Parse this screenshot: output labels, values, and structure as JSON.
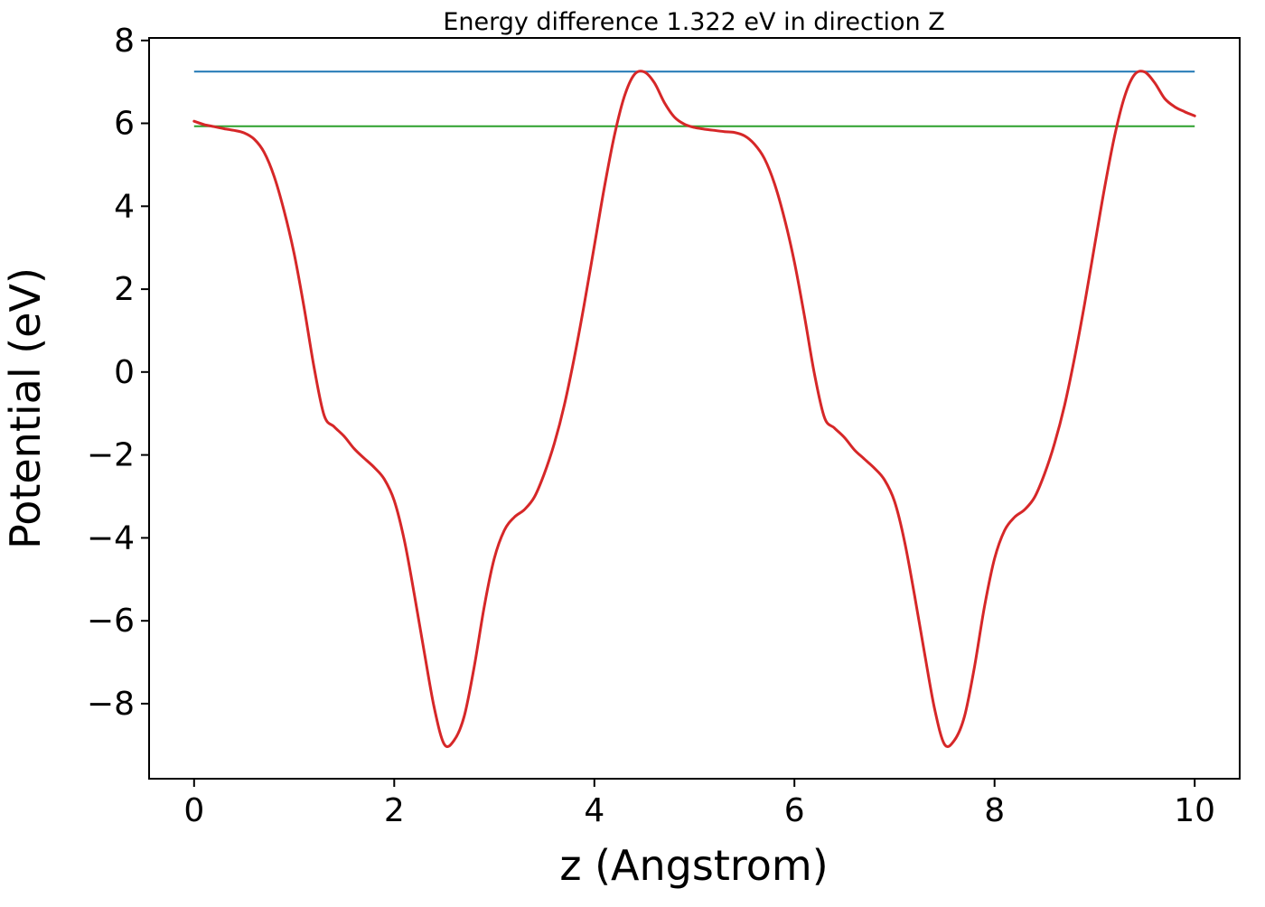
{
  "figure": {
    "background": "#ffffff"
  },
  "chart_data": {
    "type": "line",
    "title": "Energy difference 1.322 eV in direction Z",
    "xlabel": "z (Angstrom)",
    "ylabel": "Potential (eV)",
    "xlim": [
      -0.45,
      10.45
    ],
    "ylim": [
      -9.81,
      8.06
    ],
    "xticks": [
      0,
      2,
      4,
      6,
      8,
      10
    ],
    "yticks": [
      8,
      6,
      4,
      2,
      0,
      -2,
      -4,
      -6,
      -8
    ],
    "grid": false,
    "legend_visible": false,
    "energy_difference_eV": 1.322,
    "direction": "Z",
    "series": [
      {
        "name": "vacuum-level-line",
        "type": "hline",
        "color": "#1f77b4",
        "width": 2,
        "y": 7.25,
        "x_start": 0,
        "x_end": 10
      },
      {
        "name": "reference-level-line",
        "type": "hline",
        "color": "#2ca02c",
        "width": 2,
        "y": 5.93,
        "x_start": 0,
        "x_end": 10
      },
      {
        "name": "planar-averaged-potential",
        "type": "line",
        "color": "#d62728",
        "width": 3,
        "x": [
          0.0,
          0.1,
          0.2,
          0.3,
          0.4,
          0.5,
          0.6,
          0.7,
          0.8,
          0.9,
          1.0,
          1.1,
          1.2,
          1.3,
          1.4,
          1.5,
          1.6,
          1.7,
          1.8,
          1.9,
          2.0,
          2.1,
          2.2,
          2.3,
          2.4,
          2.5,
          2.6,
          2.7,
          2.8,
          2.9,
          3.0,
          3.1,
          3.2,
          3.3,
          3.4,
          3.5,
          3.6,
          3.7,
          3.8,
          3.9,
          4.0,
          4.1,
          4.2,
          4.3,
          4.4,
          4.5,
          4.6,
          4.7,
          4.8,
          4.9,
          5.0,
          5.1,
          5.2,
          5.3,
          5.4,
          5.5,
          5.6,
          5.7,
          5.8,
          5.9,
          6.0,
          6.1,
          6.2,
          6.3,
          6.4,
          6.5,
          6.6,
          6.7,
          6.8,
          6.9,
          7.0,
          7.1,
          7.2,
          7.3,
          7.4,
          7.5,
          7.6,
          7.7,
          7.8,
          7.9,
          8.0,
          8.1,
          8.2,
          8.3,
          8.4,
          8.5,
          8.6,
          8.7,
          8.8,
          8.9,
          9.0,
          9.1,
          9.2,
          9.3,
          9.4,
          9.5,
          9.6,
          9.7,
          9.8,
          9.9,
          10.0
        ],
        "y": [
          6.05,
          5.97,
          5.92,
          5.87,
          5.83,
          5.77,
          5.62,
          5.3,
          4.72,
          3.88,
          2.85,
          1.55,
          0.1,
          -1.05,
          -1.32,
          -1.55,
          -1.85,
          -2.08,
          -2.3,
          -2.58,
          -3.1,
          -4.05,
          -5.35,
          -6.75,
          -8.1,
          -8.98,
          -8.88,
          -8.3,
          -7.1,
          -5.65,
          -4.5,
          -3.82,
          -3.5,
          -3.32,
          -3.02,
          -2.45,
          -1.72,
          -0.8,
          0.35,
          1.65,
          3.05,
          4.45,
          5.7,
          6.65,
          7.18,
          7.24,
          6.98,
          6.5,
          6.15,
          5.98,
          5.9,
          5.86,
          5.83,
          5.8,
          5.78,
          5.7,
          5.5,
          5.15,
          4.55,
          3.7,
          2.65,
          1.35,
          -0.05,
          -1.1,
          -1.35,
          -1.58,
          -1.88,
          -2.1,
          -2.32,
          -2.6,
          -3.12,
          -4.08,
          -5.38,
          -6.78,
          -8.12,
          -8.98,
          -8.88,
          -8.3,
          -7.1,
          -5.65,
          -4.5,
          -3.82,
          -3.5,
          -3.32,
          -3.02,
          -2.45,
          -1.72,
          -0.8,
          0.35,
          1.65,
          3.05,
          4.45,
          5.7,
          6.65,
          7.18,
          7.24,
          6.98,
          6.6,
          6.4,
          6.28,
          6.18
        ]
      }
    ]
  }
}
